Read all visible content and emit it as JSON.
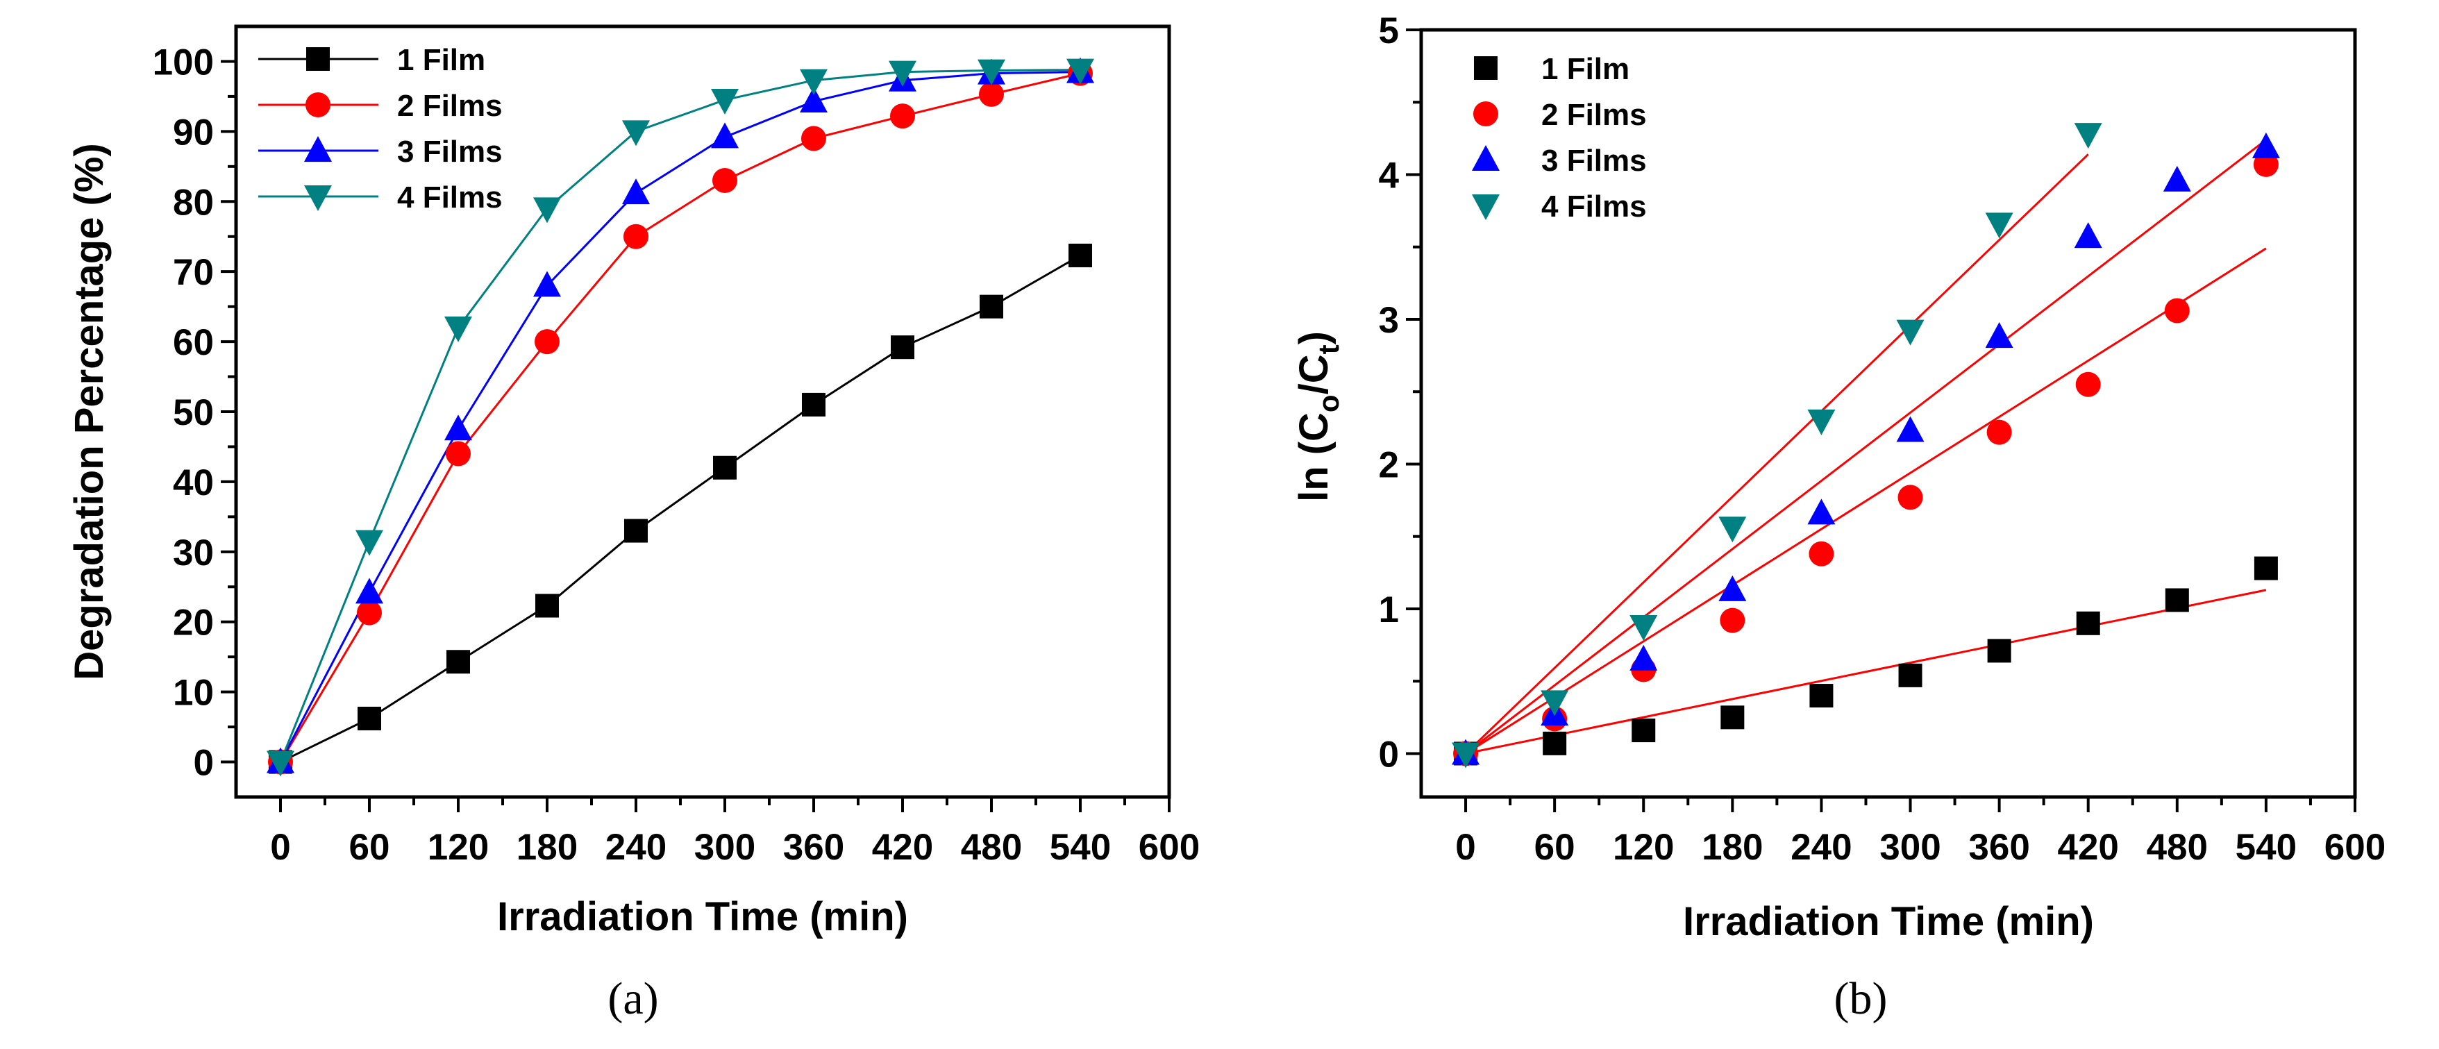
{
  "chart_data": [
    {
      "type": "line",
      "panel_label": "(a)",
      "xlabel": "Irradiation Time (min)",
      "ylabel": "Degradation Percentage (%)",
      "xlim": [
        -30,
        600
      ],
      "ylim": [
        -5,
        105
      ],
      "xticks": [
        0,
        60,
        120,
        180,
        240,
        300,
        360,
        420,
        480,
        540,
        600
      ],
      "yticks": [
        0,
        10,
        20,
        30,
        40,
        50,
        60,
        70,
        80,
        90,
        100
      ],
      "legend_position": "top-left",
      "x": [
        0,
        60,
        120,
        180,
        240,
        300,
        360,
        420,
        480,
        540
      ],
      "series": [
        {
          "name": "1 Film",
          "marker": "square",
          "color": "#000000",
          "line_color": "#000000",
          "values": [
            0,
            6.2,
            14.3,
            22.3,
            33,
            42,
            51,
            59.2,
            65,
            72.3
          ]
        },
        {
          "name": "2 Films",
          "marker": "circle",
          "color": "#ff0000",
          "line_color": "#ff0000",
          "values": [
            0,
            21.3,
            44,
            60,
            75,
            83,
            89,
            92.2,
            95.3,
            98.3
          ]
        },
        {
          "name": "3 Films",
          "marker": "triangle-up",
          "color": "#0000ff",
          "line_color": "#0000ff",
          "values": [
            0,
            24.2,
            47.5,
            68,
            81.2,
            89.2,
            94.3,
            97.3,
            98.3,
            98.5
          ]
        },
        {
          "name": "4 Films",
          "marker": "triangle-down",
          "color": "#008080",
          "line_color": "#008080",
          "values": [
            0,
            31.5,
            62,
            79,
            90,
            94.5,
            97.3,
            98.5,
            98.7,
            98.8
          ]
        }
      ]
    },
    {
      "type": "scatter",
      "panel_label": "(b)",
      "xlabel": "Irradiation Time (min)",
      "ylabel_main": "ln (C",
      "ylabel_sub1": "o",
      "ylabel_mid": "/C",
      "ylabel_sub2": "t",
      "ylabel_end": ")",
      "xlim": [
        -30,
        600
      ],
      "ylim": [
        -0.3,
        5
      ],
      "xticks": [
        0,
        60,
        120,
        180,
        240,
        300,
        360,
        420,
        480,
        540,
        600
      ],
      "yticks": [
        0,
        1,
        2,
        3,
        4,
        5
      ],
      "legend_position": "top-left",
      "series": [
        {
          "name": "1 Film",
          "marker": "square",
          "color": "#000000",
          "x": [
            0,
            60,
            120,
            180,
            240,
            300,
            360,
            420,
            480,
            540
          ],
          "values": [
            0,
            0.07,
            0.16,
            0.25,
            0.4,
            0.54,
            0.71,
            0.9,
            1.06,
            1.28
          ],
          "fit": {
            "x": [
              0,
              540
            ],
            "y": [
              0,
              1.13
            ],
            "color": "#ff0000"
          }
        },
        {
          "name": "2 Films",
          "marker": "circle",
          "color": "#ff0000",
          "x": [
            0,
            60,
            120,
            180,
            240,
            300,
            360,
            420,
            480,
            540
          ],
          "values": [
            0,
            0.24,
            0.58,
            0.92,
            1.38,
            1.77,
            2.22,
            2.55,
            3.06,
            4.07
          ],
          "fit": {
            "x": [
              0,
              540
            ],
            "y": [
              0,
              3.49
            ],
            "color": "#ff0000"
          }
        },
        {
          "name": "3 Films",
          "marker": "triangle-up",
          "color": "#0000ff",
          "x": [
            0,
            60,
            120,
            180,
            240,
            300,
            360,
            420,
            480,
            540
          ],
          "values": [
            0,
            0.27,
            0.65,
            1.13,
            1.66,
            2.23,
            2.88,
            3.57,
            3.96,
            4.19
          ],
          "fit": {
            "x": [
              0,
              540
            ],
            "y": [
              0,
              4.24
            ],
            "color": "#ff0000"
          }
        },
        {
          "name": "4 Films",
          "marker": "triangle-down",
          "color": "#008080",
          "x": [
            0,
            60,
            120,
            180,
            240,
            300,
            360,
            420
          ],
          "values": [
            0,
            0.36,
            0.88,
            1.56,
            2.3,
            2.92,
            3.66,
            4.28
          ],
          "fit": {
            "x": [
              0,
              420
            ],
            "y": [
              0,
              4.14
            ],
            "color": "#ff0000"
          }
        }
      ]
    }
  ]
}
